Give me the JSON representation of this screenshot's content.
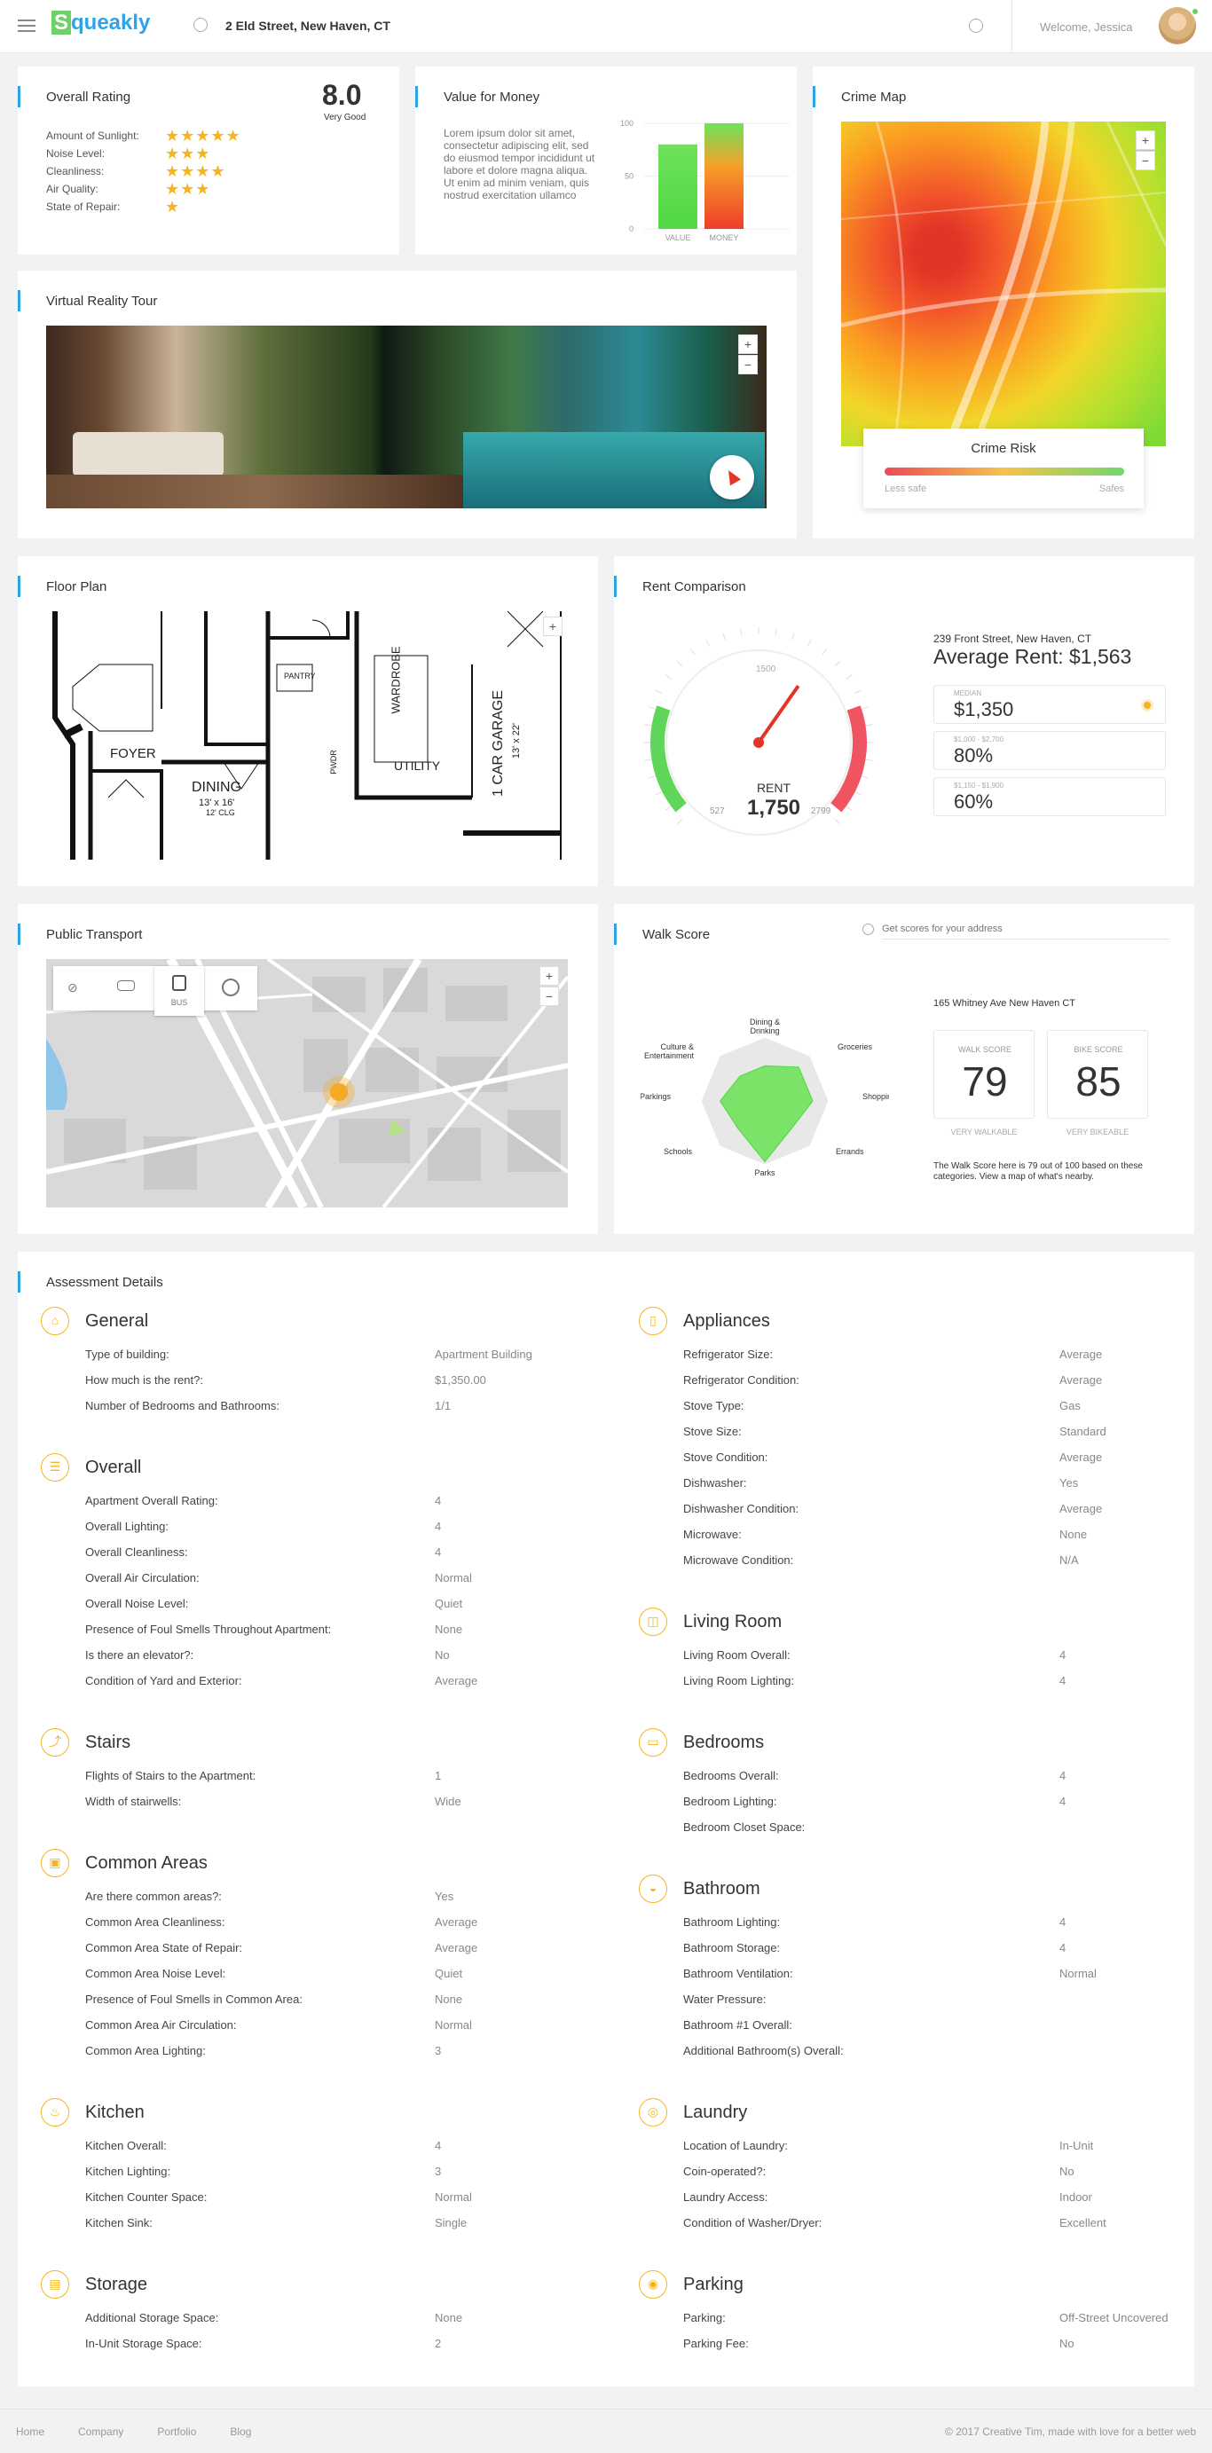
{
  "header": {
    "logo": "Squeakly",
    "location": "2 Eld Street, New Haven, CT",
    "welcome": "Welcome, Jessica"
  },
  "overall": {
    "title": "Overall Rating",
    "score": "8.0",
    "score_label": "Very Good",
    "items": [
      {
        "label": "Amount of Sunlight:",
        "stars": 5
      },
      {
        "label": "Noise Level:",
        "stars": 3
      },
      {
        "label": "Cleanliness:",
        "stars": 4
      },
      {
        "label": "Air Quality:",
        "stars": 3
      },
      {
        "label": "State of Repair:",
        "stars": 1
      }
    ]
  },
  "value": {
    "title": "Value for Money",
    "text": "Lorem ipsum dolor sit amet, consectetur adipiscing elit, sed do eiusmod tempor incididunt ut labore et dolore magna aliqua. Ut enim ad minim veniam, quis nostrud exercitation ullamco"
  },
  "chart_data": {
    "type": "bar",
    "categories": [
      "VALUE",
      "MONEY"
    ],
    "values": [
      80,
      100
    ],
    "yticks": [
      "100",
      "50",
      "0"
    ],
    "ylim": [
      0,
      100
    ]
  },
  "crime": {
    "title": "Crime Map",
    "label": "Crime Risk",
    "less": "Less safe",
    "more": "Safes"
  },
  "vr": {
    "title": "Virtual Reality Tour"
  },
  "floor": {
    "title": "Floor Plan",
    "rooms": [
      "FOYER",
      "DINING",
      "13' x 16'",
      "12' CLG",
      "PANTRY",
      "PWDR",
      "WARDROBE",
      "UTILITY",
      "1 CAR GARAGE",
      "13' x 22'"
    ]
  },
  "rent": {
    "title": "Rent Comparison",
    "address": "239 Front Street, New Haven, CT",
    "average": "Average Rent: $1,563",
    "gauge_label": "RENT",
    "gauge_value": "1,750",
    "gauge_min": "527",
    "gauge_mid": "1500",
    "gauge_max": "2799",
    "stats": [
      {
        "caption": "MEDIAN",
        "value": "$1,350"
      },
      {
        "caption": "$1,000 - $2,700",
        "value": "80%"
      },
      {
        "caption": "$1,150 - $1,900",
        "value": "60%"
      }
    ]
  },
  "transport": {
    "title": "Public Transport",
    "bus": "BUS"
  },
  "walk": {
    "title": "Walk Score",
    "search_placeholder": "Get scores for your address",
    "address": "165 Whitney Ave New Haven CT",
    "walk_label": "WALK SCORE",
    "walk_value": "79",
    "walk_caption": "VERY WALKABLE",
    "bike_label": "BIKE SCORE",
    "bike_value": "85",
    "bike_caption": "VERY BIKEABLE",
    "note": "The Walk Score here is 79 out of 100 based on these categories. View a map of what's nearby.",
    "radar": [
      "Dining & Drinking",
      "Groceries",
      "Shopping",
      "Errands",
      "Parks",
      "Schools",
      "Parkings",
      "Culture & Entertainment"
    ]
  },
  "assessment": {
    "title": "Assessment Details",
    "left": [
      {
        "title": "General",
        "rows": [
          [
            "Type of building:",
            "Apartment Building"
          ],
          [
            "How much is the rent?:",
            "$1,350.00"
          ],
          [
            "Number of Bedrooms and Bathrooms:",
            "1/1"
          ]
        ]
      },
      {
        "title": "Overall",
        "rows": [
          [
            "Apartment Overall Rating:",
            "4"
          ],
          [
            "Overall Lighting:",
            "4"
          ],
          [
            "Overall Cleanliness:",
            "4"
          ],
          [
            "Overall Air Circulation:",
            "Normal"
          ],
          [
            "Overall Noise Level:",
            "Quiet"
          ],
          [
            "Presence of Foul Smells Throughout Apartment:",
            "None"
          ],
          [
            "Is there an elevator?:",
            "No"
          ],
          [
            "Condition of Yard and Exterior:",
            "Average"
          ]
        ]
      },
      {
        "title": "Stairs",
        "rows": [
          [
            "Flights of Stairs to the Apartment:",
            "1"
          ],
          [
            "Width of stairwells:",
            "Wide"
          ]
        ]
      },
      {
        "title": "Common Areas",
        "rows": [
          [
            "Are there common areas?:",
            "Yes"
          ],
          [
            "Common Area Cleanliness:",
            "Average"
          ],
          [
            "Common Area State of Repair:",
            "Average"
          ],
          [
            "Common Area Noise Level:",
            "Quiet"
          ],
          [
            "Presence of Foul Smells in Common Area:",
            "None"
          ],
          [
            "Common Area Air Circulation:",
            "Normal"
          ],
          [
            "Common Area Lighting:",
            "3"
          ]
        ]
      },
      {
        "title": "Kitchen",
        "rows": [
          [
            "Kitchen Overall:",
            "4"
          ],
          [
            "Kitchen Lighting:",
            "3"
          ],
          [
            "Kitchen Counter Space:",
            "Normal"
          ],
          [
            "Kitchen Sink:",
            "Single"
          ]
        ]
      },
      {
        "title": "Storage",
        "rows": [
          [
            "Additional Storage Space:",
            "None"
          ],
          [
            "In-Unit Storage Space:",
            "2"
          ]
        ]
      }
    ],
    "right": [
      {
        "title": "Appliances",
        "rows": [
          [
            "Refrigerator Size:",
            "Average"
          ],
          [
            "Refrigerator Condition:",
            "Average"
          ],
          [
            "Stove Type:",
            "Gas"
          ],
          [
            "Stove Size:",
            "Standard"
          ],
          [
            "Stove Condition:",
            "Average"
          ],
          [
            "Dishwasher:",
            "Yes"
          ],
          [
            "Dishwasher Condition:",
            "Average"
          ],
          [
            "Microwave:",
            "None"
          ],
          [
            "Microwave Condition:",
            "N/A"
          ]
        ]
      },
      {
        "title": "Living Room",
        "rows": [
          [
            "Living Room Overall:",
            "4"
          ],
          [
            "Living Room Lighting:",
            "4"
          ]
        ]
      },
      {
        "title": "Bedrooms",
        "rows": [
          [
            "Bedrooms Overall:",
            "4"
          ],
          [
            "Bedroom Lighting:",
            "4"
          ],
          [
            "Bedroom Closet Space:",
            ""
          ]
        ]
      },
      {
        "title": "Bathroom",
        "rows": [
          [
            "Bathroom Lighting:",
            "4"
          ],
          [
            "Bathroom Storage:",
            "4"
          ],
          [
            "Bathroom Ventilation:",
            "Normal"
          ],
          [
            "Water Pressure:",
            ""
          ],
          [
            "Bathroom #1 Overall:",
            ""
          ],
          [
            "Additional Bathroom(s) Overall:",
            ""
          ]
        ]
      },
      {
        "title": "Laundry",
        "rows": [
          [
            "Location of Laundry:",
            "In-Unit"
          ],
          [
            "Coin-operated?:",
            "No"
          ],
          [
            "Laundry Access:",
            "Indoor"
          ],
          [
            "Condition of Washer/Dryer:",
            "Excellent"
          ]
        ]
      },
      {
        "title": "Parking",
        "rows": [
          [
            "Parking:",
            "Off-Street Uncovered"
          ],
          [
            "Parking Fee:",
            "No"
          ]
        ]
      }
    ]
  },
  "footer": {
    "links": [
      "Home",
      "Company",
      "Portfolio",
      "Blog"
    ],
    "copyright": "© 2017 Creative Tim, made with love for a better web"
  }
}
